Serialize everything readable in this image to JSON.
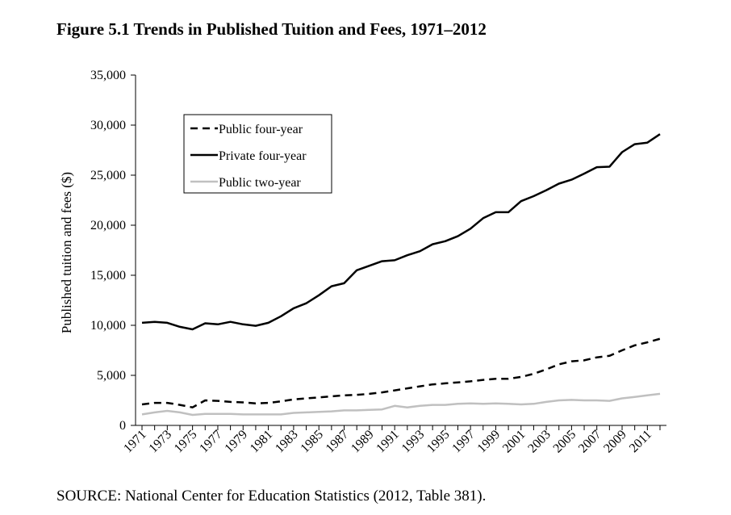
{
  "figure": {
    "title": "Figure 5.1  Trends in Published Tuition and Fees, 1971–2012",
    "source": "SOURCE: National Center for Education Statistics (2012, Table 381)."
  },
  "chart_data": {
    "type": "line",
    "title": "Figure 5.1  Trends in Published Tuition and Fees, 1971–2012",
    "xlabel": "",
    "ylabel": "Published tuition and fees ($)",
    "ylim": [
      0,
      35000
    ],
    "yticks": [
      0,
      5000,
      10000,
      15000,
      20000,
      25000,
      30000,
      35000
    ],
    "ytick_labels": [
      "0",
      "5,000",
      "10,000",
      "15,000",
      "20,000",
      "25,000",
      "30,000",
      "35,000"
    ],
    "xlim": [
      1971,
      2012
    ],
    "xtick_labels": [
      "1971",
      "1973",
      "1975",
      "1977",
      "1979",
      "1981",
      "1983",
      "1985",
      "1987",
      "1989",
      "1991",
      "1993",
      "1995",
      "1997",
      "1999",
      "2001",
      "2003",
      "2005",
      "2007",
      "2009",
      "2011"
    ],
    "grid": false,
    "legend_position": "top-left",
    "x": [
      1971,
      1972,
      1973,
      1974,
      1975,
      1976,
      1977,
      1978,
      1979,
      1980,
      1981,
      1982,
      1983,
      1984,
      1985,
      1986,
      1987,
      1988,
      1989,
      1990,
      1991,
      1992,
      1993,
      1994,
      1995,
      1996,
      1997,
      1998,
      1999,
      2000,
      2001,
      2002,
      2003,
      2004,
      2005,
      2006,
      2007,
      2008,
      2009,
      2010,
      2011,
      2012
    ],
    "series": [
      {
        "name": "Public four-year",
        "style": "dashed",
        "color": "#000000",
        "values": [
          2100,
          2250,
          2250,
          2050,
          1800,
          2500,
          2450,
          2350,
          2300,
          2200,
          2250,
          2400,
          2600,
          2700,
          2800,
          2900,
          3000,
          3050,
          3150,
          3300,
          3500,
          3700,
          3900,
          4100,
          4200,
          4300,
          4400,
          4550,
          4650,
          4650,
          4850,
          5150,
          5600,
          6100,
          6400,
          6500,
          6800,
          6950,
          7500,
          8000,
          8300,
          8650
        ]
      },
      {
        "name": "Private four-year",
        "style": "solid",
        "color": "#000000",
        "values": [
          10250,
          10350,
          10250,
          9850,
          9600,
          10200,
          10100,
          10350,
          10100,
          9950,
          10250,
          10900,
          11700,
          12200,
          13000,
          13900,
          14200,
          15500,
          15950,
          16400,
          16500,
          17000,
          17400,
          18100,
          18400,
          18900,
          19650,
          20700,
          21300,
          21300,
          22400,
          22900,
          23500,
          24150,
          24550,
          25150,
          25800,
          25850,
          27300,
          28100,
          28250,
          29100
        ]
      },
      {
        "name": "Public two-year",
        "style": "solid",
        "color": "#c0c0c0",
        "values": [
          1100,
          1300,
          1450,
          1300,
          1050,
          1150,
          1150,
          1150,
          1100,
          1100,
          1100,
          1100,
          1250,
          1300,
          1350,
          1400,
          1500,
          1500,
          1550,
          1600,
          1950,
          1800,
          1950,
          2050,
          2050,
          2150,
          2200,
          2150,
          2200,
          2150,
          2100,
          2150,
          2350,
          2500,
          2550,
          2500,
          2500,
          2450,
          2700,
          2850,
          3000,
          3150
        ]
      }
    ]
  }
}
